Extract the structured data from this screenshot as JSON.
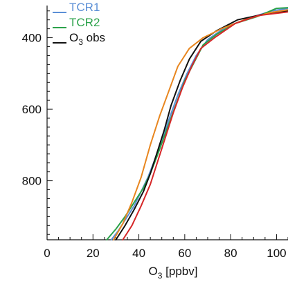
{
  "chart_data": {
    "type": "line",
    "xlabel": "O3 [ppbv]",
    "xlim": [
      0,
      105
    ],
    "ylim": [
      965,
      310
    ],
    "x_ticks": [
      0,
      20,
      40,
      60,
      80,
      100
    ],
    "x_tick_labels": [
      "0",
      "20",
      "40",
      "60",
      "80",
      "100"
    ],
    "y_ticks": [
      400,
      600,
      800
    ],
    "y_tick_labels": [
      "400",
      "600",
      "800"
    ],
    "grid": false,
    "legend_position": "top-left",
    "legend": [
      "TCR1",
      "TCR2",
      "O3 obs"
    ],
    "series": [
      {
        "name": "TCR1",
        "color": "#5b8fd6",
        "points": [
          [
            28,
            965
          ],
          [
            31,
            940
          ],
          [
            34,
            910
          ],
          [
            38,
            870
          ],
          [
            41,
            830
          ],
          [
            44,
            790
          ],
          [
            47,
            740
          ],
          [
            50,
            690
          ],
          [
            53,
            630
          ],
          [
            57,
            560
          ],
          [
            61,
            500
          ],
          [
            65,
            450
          ],
          [
            70,
            405
          ],
          [
            78,
            370
          ],
          [
            88,
            345
          ],
          [
            98,
            325
          ],
          [
            105,
            318
          ]
        ]
      },
      {
        "name": "TCR2",
        "color": "#2ba24a",
        "points": [
          [
            26,
            965
          ],
          [
            30,
            935
          ],
          [
            34,
            900
          ],
          [
            38,
            860
          ],
          [
            42,
            820
          ],
          [
            45,
            780
          ],
          [
            48,
            730
          ],
          [
            52,
            660
          ],
          [
            56,
            590
          ],
          [
            60,
            520
          ],
          [
            64,
            470
          ],
          [
            68,
            420
          ],
          [
            74,
            390
          ],
          [
            82,
            360
          ],
          [
            92,
            340
          ],
          [
            100,
            318
          ],
          [
            105,
            316
          ]
        ]
      },
      {
        "name": "O3 obs",
        "color": "#111111",
        "points": [
          [
            30,
            965
          ],
          [
            34,
            925
          ],
          [
            38,
            880
          ],
          [
            42,
            830
          ],
          [
            45,
            780
          ],
          [
            48,
            720
          ],
          [
            51,
            660
          ],
          [
            54,
            590
          ],
          [
            58,
            520
          ],
          [
            62,
            460
          ],
          [
            67,
            410
          ],
          [
            74,
            380
          ],
          [
            83,
            350
          ],
          [
            94,
            335
          ],
          [
            105,
            325
          ]
        ]
      },
      {
        "name": "",
        "color": "#e8861f",
        "points": [
          [
            29,
            965
          ],
          [
            33,
            920
          ],
          [
            37,
            860
          ],
          [
            41,
            790
          ],
          [
            45,
            700
          ],
          [
            49,
            620
          ],
          [
            53,
            550
          ],
          [
            57,
            480
          ],
          [
            62,
            430
          ],
          [
            68,
            400
          ],
          [
            76,
            375
          ],
          [
            86,
            350
          ],
          [
            97,
            330
          ],
          [
            105,
            322
          ]
        ]
      },
      {
        "name": "",
        "color": "#d62728",
        "points": [
          [
            33,
            965
          ],
          [
            37,
            925
          ],
          [
            41,
            870
          ],
          [
            45,
            810
          ],
          [
            48,
            750
          ],
          [
            51,
            690
          ],
          [
            55,
            610
          ],
          [
            59,
            540
          ],
          [
            63,
            480
          ],
          [
            67,
            430
          ],
          [
            73,
            400
          ],
          [
            82,
            360
          ],
          [
            92,
            338
          ],
          [
            105,
            328
          ]
        ]
      }
    ]
  }
}
